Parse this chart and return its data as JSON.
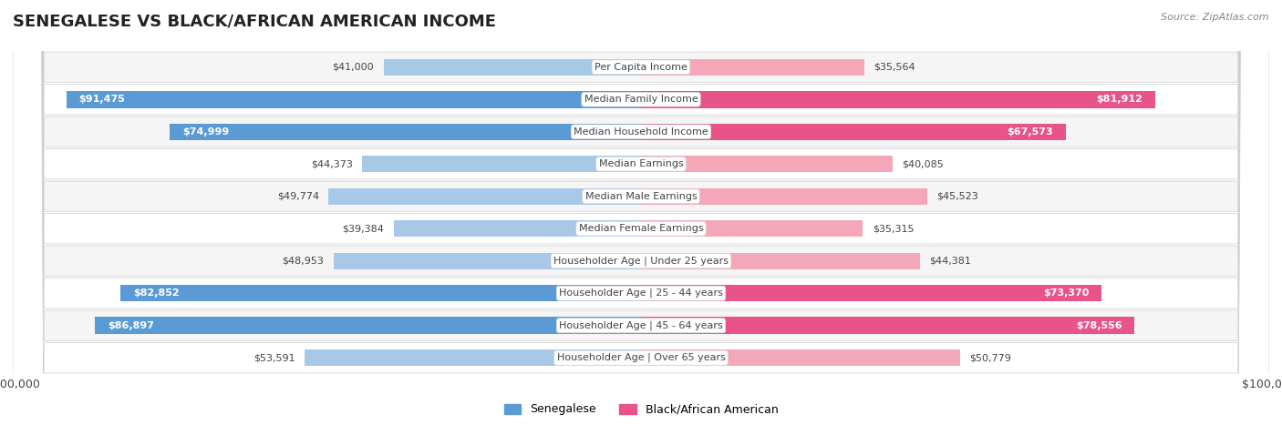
{
  "title": "SENEGALESE VS BLACK/AFRICAN AMERICAN INCOME",
  "source": "Source: ZipAtlas.com",
  "categories": [
    "Per Capita Income",
    "Median Family Income",
    "Median Household Income",
    "Median Earnings",
    "Median Male Earnings",
    "Median Female Earnings",
    "Householder Age | Under 25 years",
    "Householder Age | 25 - 44 years",
    "Householder Age | 45 - 64 years",
    "Householder Age | Over 65 years"
  ],
  "senegalese_values": [
    41000,
    91475,
    74999,
    44373,
    49774,
    39384,
    48953,
    82852,
    86897,
    53591
  ],
  "black_values": [
    35564,
    81912,
    67573,
    40085,
    45523,
    35315,
    44381,
    73370,
    78556,
    50779
  ],
  "senegalese_labels": [
    "$41,000",
    "$91,475",
    "$74,999",
    "$44,373",
    "$49,774",
    "$39,384",
    "$48,953",
    "$82,852",
    "$86,897",
    "$53,591"
  ],
  "black_labels": [
    "$35,564",
    "$81,912",
    "$67,573",
    "$40,085",
    "$45,523",
    "$35,315",
    "$44,381",
    "$73,370",
    "$78,556",
    "$50,779"
  ],
  "senegalese_color_light": "#a8c8e8",
  "senegalese_color_dark": "#5b9bd5",
  "black_color_light": "#f4a7b9",
  "black_color_dark": "#e8538a",
  "row_bg_light": "#f5f5f5",
  "row_bg_white": "#ffffff",
  "xlim": 100000,
  "bar_height": 0.52,
  "sen_threshold": 60000,
  "blk_threshold": 60000,
  "legend_labels": [
    "Senegalese",
    "Black/African American"
  ],
  "legend_colors": [
    "#5b9bd5",
    "#e8538a"
  ]
}
